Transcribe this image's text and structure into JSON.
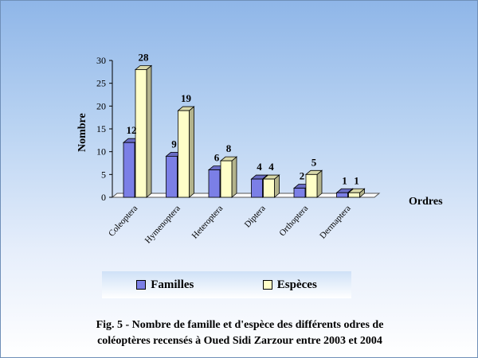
{
  "chart_data": {
    "type": "bar",
    "categories": [
      "Coleoptera",
      "Hymenoptera",
      "Heteroptera",
      "Diptera",
      "Orthoptera",
      "Dermaptera"
    ],
    "series": [
      {
        "name": "Familles",
        "values": [
          12,
          9,
          6,
          4,
          2,
          1
        ],
        "color": "#7b7fe6"
      },
      {
        "name": "Espèces",
        "values": [
          28,
          19,
          8,
          4,
          5,
          1
        ],
        "color": "#ffffc8"
      }
    ],
    "title": "",
    "xlabel": "Ordres",
    "ylabel": "Nombre",
    "ylim": [
      0,
      30
    ],
    "yticks": [
      "0",
      "5",
      "10",
      "15",
      "20",
      "25",
      "30"
    ],
    "data_labels": true,
    "grid": false,
    "legend_position": "bottom",
    "style": "3d-bar"
  },
  "legend": {
    "familles": "Familles",
    "especes": "Espèces"
  },
  "caption": {
    "line1": "Fig. 5 - Nombre de famille et d'espèce des différents odres de",
    "line2": "coléoptères recensés à Oued Sidi Zarzour entre 2003 et 2004"
  }
}
